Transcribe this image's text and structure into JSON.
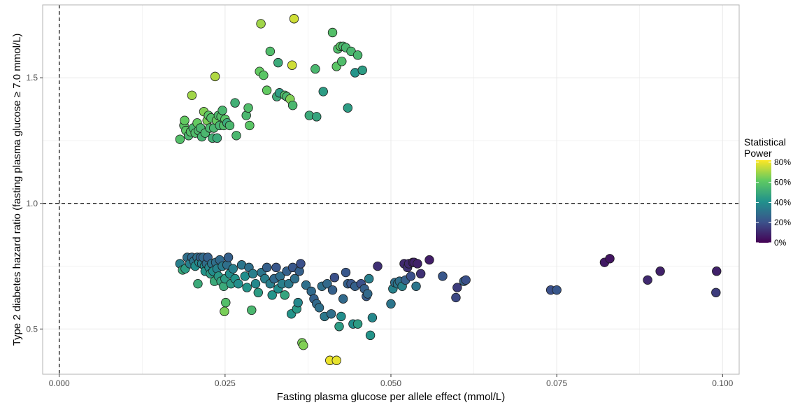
{
  "chart_data": {
    "type": "scatter",
    "xlabel": "Fasting plasma glucose per allele effect (mmol/L)",
    "ylabel": "Type 2 diabetes hazard ratio (fasting plasma glucose ≥ 7.0 mmol/L)",
    "xlim": [
      -0.0025,
      0.1025
    ],
    "ylim": [
      0.32,
      1.79
    ],
    "x_ticks": [
      0,
      0.025,
      0.05,
      0.075,
      0.1
    ],
    "x_tick_labels": [
      "0.000",
      "0.025",
      "0.050",
      "0.075",
      "0.100"
    ],
    "y_ticks": [
      0.5,
      1.0,
      1.5
    ],
    "y_tick_labels": [
      "0.5",
      "1.0",
      "1.5"
    ],
    "reference_lines": {
      "x": 0,
      "y": 1.0,
      "style": "dashed"
    },
    "grid": true,
    "legend": {
      "title_lines": [
        "Statistical",
        "Power"
      ],
      "placement": "right",
      "ticks": [
        0,
        20,
        40,
        60,
        80
      ],
      "tick_labels": [
        "0%",
        "20%",
        "40%",
        "60%",
        "80%"
      ],
      "colormap": "viridis"
    },
    "colors": {
      "grid": "#ebebeb",
      "panel_border": "#b3b3b3",
      "point_edge": "#1a1a1a",
      "viridis_stops": [
        "#440154",
        "#3b528b",
        "#21918c",
        "#5ec962",
        "#fde725"
      ]
    },
    "points": [
      {
        "x": 0.0182,
        "y": 1.255,
        "p": 58
      },
      {
        "x": 0.0188,
        "y": 1.31,
        "p": 60
      },
      {
        "x": 0.0189,
        "y": 1.33,
        "p": 62
      },
      {
        "x": 0.0191,
        "y": 1.29,
        "p": 60
      },
      {
        "x": 0.0195,
        "y": 1.27,
        "p": 55
      },
      {
        "x": 0.0198,
        "y": 1.285,
        "p": 58
      },
      {
        "x": 0.02,
        "y": 1.43,
        "p": 70
      },
      {
        "x": 0.0202,
        "y": 1.3,
        "p": 55
      },
      {
        "x": 0.0205,
        "y": 1.28,
        "p": 57
      },
      {
        "x": 0.0208,
        "y": 1.32,
        "p": 62
      },
      {
        "x": 0.021,
        "y": 1.29,
        "p": 56
      },
      {
        "x": 0.0213,
        "y": 1.3,
        "p": 55
      },
      {
        "x": 0.0215,
        "y": 1.265,
        "p": 54
      },
      {
        "x": 0.0218,
        "y": 1.365,
        "p": 66
      },
      {
        "x": 0.022,
        "y": 1.28,
        "p": 55
      },
      {
        "x": 0.0223,
        "y": 1.33,
        "p": 65
      },
      {
        "x": 0.0225,
        "y": 1.35,
        "p": 60
      },
      {
        "x": 0.0227,
        "y": 1.3,
        "p": 55
      },
      {
        "x": 0.0229,
        "y": 1.34,
        "p": 58
      },
      {
        "x": 0.0231,
        "y": 1.26,
        "p": 52
      },
      {
        "x": 0.0233,
        "y": 1.3,
        "p": 55
      },
      {
        "x": 0.0235,
        "y": 1.505,
        "p": 72
      },
      {
        "x": 0.0237,
        "y": 1.33,
        "p": 62
      },
      {
        "x": 0.0238,
        "y": 1.26,
        "p": 50
      },
      {
        "x": 0.024,
        "y": 1.35,
        "p": 56
      },
      {
        "x": 0.0242,
        "y": 1.31,
        "p": 54
      },
      {
        "x": 0.0244,
        "y": 1.345,
        "p": 58
      },
      {
        "x": 0.0246,
        "y": 1.37,
        "p": 55
      },
      {
        "x": 0.0248,
        "y": 1.31,
        "p": 57
      },
      {
        "x": 0.025,
        "y": 1.335,
        "p": 60
      },
      {
        "x": 0.0253,
        "y": 1.32,
        "p": 50
      },
      {
        "x": 0.0257,
        "y": 1.31,
        "p": 55
      },
      {
        "x": 0.0265,
        "y": 1.4,
        "p": 52
      },
      {
        "x": 0.0267,
        "y": 1.27,
        "p": 55
      },
      {
        "x": 0.0282,
        "y": 1.35,
        "p": 55
      },
      {
        "x": 0.0285,
        "y": 1.38,
        "p": 57
      },
      {
        "x": 0.0287,
        "y": 1.31,
        "p": 60
      },
      {
        "x": 0.0302,
        "y": 1.525,
        "p": 62
      },
      {
        "x": 0.0304,
        "y": 1.715,
        "p": 70
      },
      {
        "x": 0.0308,
        "y": 1.51,
        "p": 60
      },
      {
        "x": 0.0313,
        "y": 1.45,
        "p": 62
      },
      {
        "x": 0.0318,
        "y": 1.605,
        "p": 57
      },
      {
        "x": 0.0328,
        "y": 1.425,
        "p": 50
      },
      {
        "x": 0.033,
        "y": 1.56,
        "p": 50
      },
      {
        "x": 0.0332,
        "y": 1.44,
        "p": 45
      },
      {
        "x": 0.034,
        "y": 1.43,
        "p": 58
      },
      {
        "x": 0.0343,
        "y": 1.425,
        "p": 55
      },
      {
        "x": 0.0348,
        "y": 1.415,
        "p": 66
      },
      {
        "x": 0.0351,
        "y": 1.55,
        "p": 76
      },
      {
        "x": 0.0352,
        "y": 1.39,
        "p": 55
      },
      {
        "x": 0.0354,
        "y": 1.735,
        "p": 76
      },
      {
        "x": 0.0377,
        "y": 1.35,
        "p": 50
      },
      {
        "x": 0.0386,
        "y": 1.535,
        "p": 55
      },
      {
        "x": 0.0388,
        "y": 1.345,
        "p": 48
      },
      {
        "x": 0.0398,
        "y": 1.445,
        "p": 45
      },
      {
        "x": 0.0412,
        "y": 1.68,
        "p": 58
      },
      {
        "x": 0.0418,
        "y": 1.545,
        "p": 60
      },
      {
        "x": 0.042,
        "y": 1.615,
        "p": 57
      },
      {
        "x": 0.0424,
        "y": 1.625,
        "p": 60
      },
      {
        "x": 0.0426,
        "y": 1.565,
        "p": 57
      },
      {
        "x": 0.0428,
        "y": 1.625,
        "p": 55
      },
      {
        "x": 0.0432,
        "y": 1.62,
        "p": 55
      },
      {
        "x": 0.0435,
        "y": 1.38,
        "p": 45
      },
      {
        "x": 0.044,
        "y": 1.605,
        "p": 55
      },
      {
        "x": 0.0446,
        "y": 1.52,
        "p": 42
      },
      {
        "x": 0.045,
        "y": 1.59,
        "p": 55
      },
      {
        "x": 0.0457,
        "y": 1.53,
        "p": 45
      },
      {
        "x": 0.0182,
        "y": 0.76,
        "p": 35
      },
      {
        "x": 0.0186,
        "y": 0.735,
        "p": 50
      },
      {
        "x": 0.019,
        "y": 0.74,
        "p": 45
      },
      {
        "x": 0.0193,
        "y": 0.785,
        "p": 30
      },
      {
        "x": 0.0197,
        "y": 0.76,
        "p": 35
      },
      {
        "x": 0.02,
        "y": 0.785,
        "p": 28
      },
      {
        "x": 0.0203,
        "y": 0.77,
        "p": 32
      },
      {
        "x": 0.0205,
        "y": 0.75,
        "p": 40
      },
      {
        "x": 0.0208,
        "y": 0.785,
        "p": 30
      },
      {
        "x": 0.0209,
        "y": 0.68,
        "p": 50
      },
      {
        "x": 0.0211,
        "y": 0.765,
        "p": 38
      },
      {
        "x": 0.0213,
        "y": 0.785,
        "p": 25
      },
      {
        "x": 0.0215,
        "y": 0.76,
        "p": 35
      },
      {
        "x": 0.0217,
        "y": 0.785,
        "p": 28
      },
      {
        "x": 0.0219,
        "y": 0.75,
        "p": 40
      },
      {
        "x": 0.022,
        "y": 0.73,
        "p": 42
      },
      {
        "x": 0.0222,
        "y": 0.76,
        "p": 30
      },
      {
        "x": 0.0224,
        "y": 0.785,
        "p": 25
      },
      {
        "x": 0.0226,
        "y": 0.745,
        "p": 38
      },
      {
        "x": 0.0228,
        "y": 0.72,
        "p": 45
      },
      {
        "x": 0.023,
        "y": 0.76,
        "p": 32
      },
      {
        "x": 0.0232,
        "y": 0.73,
        "p": 40
      },
      {
        "x": 0.0234,
        "y": 0.69,
        "p": 50
      },
      {
        "x": 0.0236,
        "y": 0.765,
        "p": 30
      },
      {
        "x": 0.0238,
        "y": 0.74,
        "p": 36
      },
      {
        "x": 0.024,
        "y": 0.71,
        "p": 44
      },
      {
        "x": 0.0242,
        "y": 0.775,
        "p": 28
      },
      {
        "x": 0.0244,
        "y": 0.69,
        "p": 48
      },
      {
        "x": 0.0246,
        "y": 0.75,
        "p": 34
      },
      {
        "x": 0.0248,
        "y": 0.67,
        "p": 50
      },
      {
        "x": 0.0249,
        "y": 0.57,
        "p": 65
      },
      {
        "x": 0.025,
        "y": 0.7,
        "p": 45
      },
      {
        "x": 0.0251,
        "y": 0.605,
        "p": 58
      },
      {
        "x": 0.0253,
        "y": 0.755,
        "p": 30
      },
      {
        "x": 0.0255,
        "y": 0.785,
        "p": 25
      },
      {
        "x": 0.0257,
        "y": 0.72,
        "p": 40
      },
      {
        "x": 0.0259,
        "y": 0.68,
        "p": 45
      },
      {
        "x": 0.0262,
        "y": 0.74,
        "p": 35
      },
      {
        "x": 0.0265,
        "y": 0.7,
        "p": 42
      },
      {
        "x": 0.027,
        "y": 0.68,
        "p": 40
      },
      {
        "x": 0.0275,
        "y": 0.755,
        "p": 32
      },
      {
        "x": 0.028,
        "y": 0.71,
        "p": 40
      },
      {
        "x": 0.0283,
        "y": 0.665,
        "p": 42
      },
      {
        "x": 0.0286,
        "y": 0.745,
        "p": 30
      },
      {
        "x": 0.029,
        "y": 0.575,
        "p": 55
      },
      {
        "x": 0.0292,
        "y": 0.72,
        "p": 35
      },
      {
        "x": 0.0296,
        "y": 0.68,
        "p": 38
      },
      {
        "x": 0.03,
        "y": 0.645,
        "p": 45
      },
      {
        "x": 0.0305,
        "y": 0.725,
        "p": 32
      },
      {
        "x": 0.031,
        "y": 0.7,
        "p": 35
      },
      {
        "x": 0.0313,
        "y": 0.745,
        "p": 25
      },
      {
        "x": 0.0318,
        "y": 0.68,
        "p": 35
      },
      {
        "x": 0.0321,
        "y": 0.635,
        "p": 42
      },
      {
        "x": 0.0324,
        "y": 0.7,
        "p": 28
      },
      {
        "x": 0.0327,
        "y": 0.745,
        "p": 22
      },
      {
        "x": 0.033,
        "y": 0.66,
        "p": 40
      },
      {
        "x": 0.0333,
        "y": 0.71,
        "p": 30
      },
      {
        "x": 0.0336,
        "y": 0.68,
        "p": 35
      },
      {
        "x": 0.034,
        "y": 0.635,
        "p": 48
      },
      {
        "x": 0.0343,
        "y": 0.73,
        "p": 25
      },
      {
        "x": 0.0346,
        "y": 0.68,
        "p": 33
      },
      {
        "x": 0.035,
        "y": 0.56,
        "p": 42
      },
      {
        "x": 0.0352,
        "y": 0.745,
        "p": 22
      },
      {
        "x": 0.0355,
        "y": 0.7,
        "p": 30
      },
      {
        "x": 0.0358,
        "y": 0.58,
        "p": 44
      },
      {
        "x": 0.036,
        "y": 0.605,
        "p": 38
      },
      {
        "x": 0.0362,
        "y": 0.73,
        "p": 25
      },
      {
        "x": 0.0364,
        "y": 0.76,
        "p": 20
      },
      {
        "x": 0.0366,
        "y": 0.445,
        "p": 65
      },
      {
        "x": 0.0368,
        "y": 0.435,
        "p": 66
      },
      {
        "x": 0.0372,
        "y": 0.675,
        "p": 30
      },
      {
        "x": 0.038,
        "y": 0.65,
        "p": 28
      },
      {
        "x": 0.0384,
        "y": 0.62,
        "p": 25
      },
      {
        "x": 0.0388,
        "y": 0.6,
        "p": 28
      },
      {
        "x": 0.0392,
        "y": 0.585,
        "p": 30
      },
      {
        "x": 0.0396,
        "y": 0.67,
        "p": 30
      },
      {
        "x": 0.04,
        "y": 0.55,
        "p": 33
      },
      {
        "x": 0.0404,
        "y": 0.68,
        "p": 28
      },
      {
        "x": 0.0408,
        "y": 0.375,
        "p": 80
      },
      {
        "x": 0.041,
        "y": 0.56,
        "p": 30
      },
      {
        "x": 0.0412,
        "y": 0.655,
        "p": 25
      },
      {
        "x": 0.0415,
        "y": 0.705,
        "p": 20
      },
      {
        "x": 0.0418,
        "y": 0.375,
        "p": 79
      },
      {
        "x": 0.0422,
        "y": 0.51,
        "p": 45
      },
      {
        "x": 0.0425,
        "y": 0.55,
        "p": 40
      },
      {
        "x": 0.0428,
        "y": 0.62,
        "p": 28
      },
      {
        "x": 0.0432,
        "y": 0.725,
        "p": 22
      },
      {
        "x": 0.0435,
        "y": 0.68,
        "p": 25
      },
      {
        "x": 0.044,
        "y": 0.68,
        "p": 22
      },
      {
        "x": 0.0443,
        "y": 0.52,
        "p": 40
      },
      {
        "x": 0.0446,
        "y": 0.67,
        "p": 25
      },
      {
        "x": 0.045,
        "y": 0.52,
        "p": 45
      },
      {
        "x": 0.0455,
        "y": 0.68,
        "p": 20
      },
      {
        "x": 0.046,
        "y": 0.66,
        "p": 25
      },
      {
        "x": 0.0463,
        "y": 0.63,
        "p": 24
      },
      {
        "x": 0.0465,
        "y": 0.64,
        "p": 28
      },
      {
        "x": 0.0467,
        "y": 0.7,
        "p": 35
      },
      {
        "x": 0.0469,
        "y": 0.475,
        "p": 42
      },
      {
        "x": 0.0472,
        "y": 0.545,
        "p": 38
      },
      {
        "x": 0.048,
        "y": 0.75,
        "p": 12
      },
      {
        "x": 0.05,
        "y": 0.6,
        "p": 32
      },
      {
        "x": 0.0503,
        "y": 0.66,
        "p": 36
      },
      {
        "x": 0.0506,
        "y": 0.685,
        "p": 30
      },
      {
        "x": 0.051,
        "y": 0.68,
        "p": 33
      },
      {
        "x": 0.0513,
        "y": 0.69,
        "p": 30
      },
      {
        "x": 0.0517,
        "y": 0.67,
        "p": 36
      },
      {
        "x": 0.052,
        "y": 0.76,
        "p": 10
      },
      {
        "x": 0.0522,
        "y": 0.695,
        "p": 25
      },
      {
        "x": 0.0525,
        "y": 0.745,
        "p": 12
      },
      {
        "x": 0.0527,
        "y": 0.76,
        "p": 10
      },
      {
        "x": 0.053,
        "y": 0.71,
        "p": 20
      },
      {
        "x": 0.0533,
        "y": 0.765,
        "p": 8
      },
      {
        "x": 0.0535,
        "y": 0.765,
        "p": 8
      },
      {
        "x": 0.0538,
        "y": 0.67,
        "p": 32
      },
      {
        "x": 0.054,
        "y": 0.76,
        "p": 8
      },
      {
        "x": 0.0545,
        "y": 0.72,
        "p": 12
      },
      {
        "x": 0.0558,
        "y": 0.775,
        "p": 7
      },
      {
        "x": 0.0578,
        "y": 0.71,
        "p": 22
      },
      {
        "x": 0.0598,
        "y": 0.625,
        "p": 18
      },
      {
        "x": 0.06,
        "y": 0.665,
        "p": 15
      },
      {
        "x": 0.061,
        "y": 0.69,
        "p": 25
      },
      {
        "x": 0.0613,
        "y": 0.695,
        "p": 20
      },
      {
        "x": 0.0741,
        "y": 0.655,
        "p": 20
      },
      {
        "x": 0.075,
        "y": 0.655,
        "p": 22
      },
      {
        "x": 0.0822,
        "y": 0.765,
        "p": 6
      },
      {
        "x": 0.083,
        "y": 0.78,
        "p": 5
      },
      {
        "x": 0.0887,
        "y": 0.695,
        "p": 10
      },
      {
        "x": 0.0906,
        "y": 0.73,
        "p": 8
      },
      {
        "x": 0.099,
        "y": 0.645,
        "p": 15
      },
      {
        "x": 0.0991,
        "y": 0.73,
        "p": 8
      }
    ]
  }
}
